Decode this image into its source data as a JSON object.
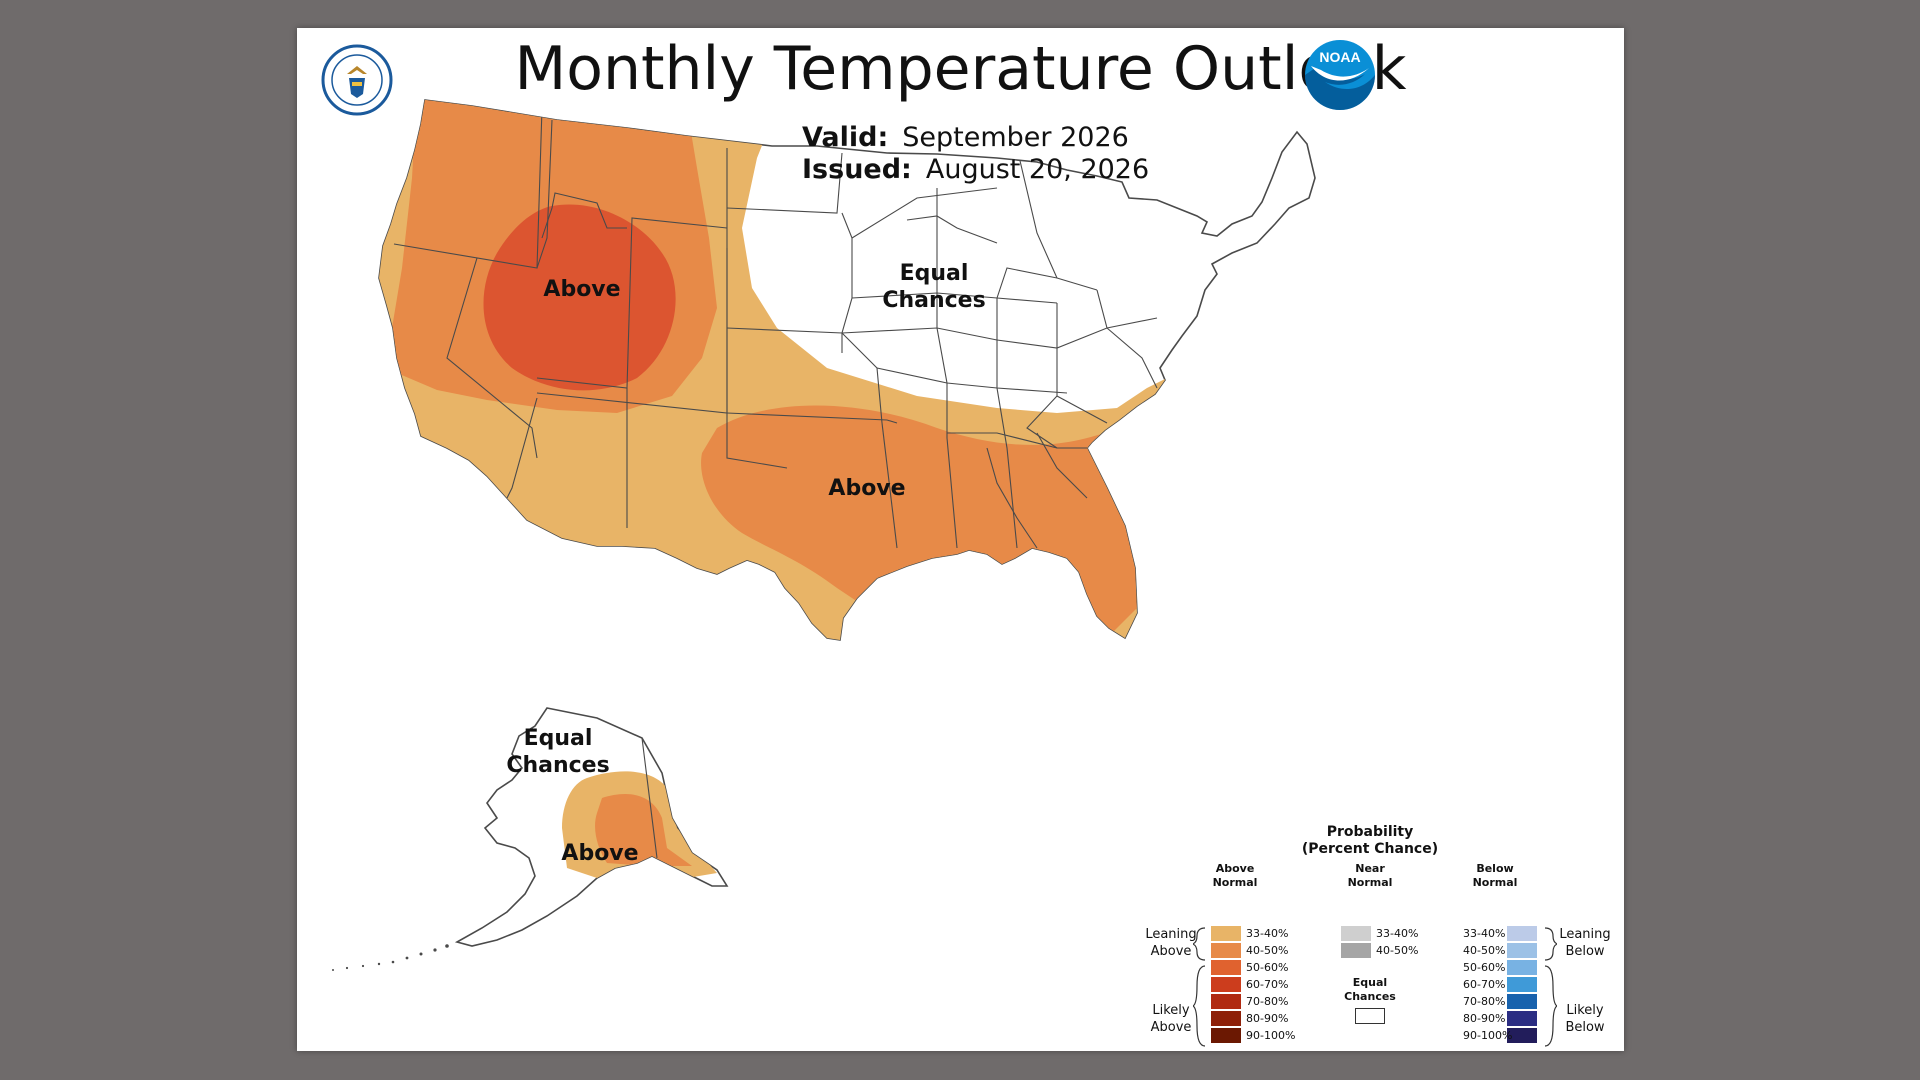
{
  "title": "Monthly Temperature Outlook",
  "valid_label": "Valid:",
  "valid_value": "September 2026",
  "issued_label": "Issued:",
  "issued_value": "August 20, 2026",
  "regions": {
    "west_above": "Above",
    "southeast_above": "Above",
    "east_equal_line1": "Equal",
    "east_equal_line2": "Chances",
    "alaska_equal_line1": "Equal",
    "alaska_equal_line2": "Chances",
    "alaska_above": "Above"
  },
  "logos": {
    "left": "department-of-commerce-seal",
    "right": "noaa-logo",
    "noaa_text": "NOAA"
  },
  "legend": {
    "title_line1": "Probability",
    "title_line2": "(Percent Chance)",
    "above_header_line1": "Above",
    "above_header_line2": "Normal",
    "near_header_line1": "Near",
    "near_header_line2": "Normal",
    "below_header_line1": "Below",
    "below_header_line2": "Normal",
    "leaning_above_1": "Leaning",
    "leaning_above_2": "Above",
    "likely_above_1": "Likely",
    "likely_above_2": "Above",
    "leaning_below_1": "Leaning",
    "leaning_below_2": "Below",
    "likely_below_1": "Likely",
    "likely_below_2": "Below",
    "equal_1": "Equal",
    "equal_2": "Chances",
    "above": [
      {
        "label": "33-40%",
        "color": "#e8b467"
      },
      {
        "label": "40-50%",
        "color": "#e78a48"
      },
      {
        "label": "50-60%",
        "color": "#e0622f"
      },
      {
        "label": "60-70%",
        "color": "#cc3d1d"
      },
      {
        "label": "70-80%",
        "color": "#b02a11"
      },
      {
        "label": "80-90%",
        "color": "#8e2008"
      },
      {
        "label": "90-100%",
        "color": "#6b1802"
      }
    ],
    "near": [
      {
        "label": "33-40%",
        "color": "#cfcfcf"
      },
      {
        "label": "40-50%",
        "color": "#a5a5a5"
      }
    ],
    "below": [
      {
        "label": "33-40%",
        "color": "#bccbe8"
      },
      {
        "label": "40-50%",
        "color": "#9cc1e6"
      },
      {
        "label": "50-60%",
        "color": "#78b2e3"
      },
      {
        "label": "60-70%",
        "color": "#3f9ad8"
      },
      {
        "label": "70-80%",
        "color": "#1862ad"
      },
      {
        "label": "80-90%",
        "color": "#2b2d83"
      },
      {
        "label": "90-100%",
        "color": "#221d5b"
      }
    ]
  },
  "colors": {
    "lean_above": "#e8b467",
    "above_40_50": "#e78a48",
    "above_50_60": "#dc5530",
    "equal_chances": "#ffffff",
    "state_borders": "#4a4a4a",
    "background": "#6f6b6b"
  }
}
